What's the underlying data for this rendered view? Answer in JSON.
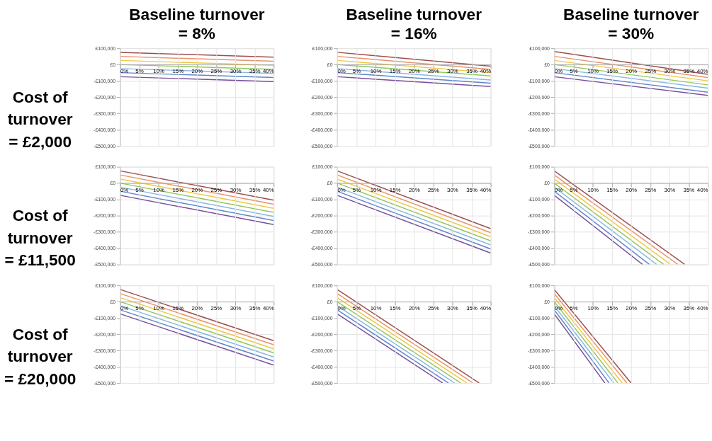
{
  "chart_data": [
    {
      "type": "line",
      "title": "Baseline turnover\n= 8%",
      "ylabel": "Cost of\nturnover\n= £2,000",
      "xlim": [
        0,
        40
      ],
      "ylim": [
        -500000,
        100000
      ],
      "grid": true,
      "xticks": [
        {
          "value": 0,
          "label": "0%"
        },
        {
          "value": 5,
          "label": "5%"
        },
        {
          "value": 10,
          "label": "10%"
        },
        {
          "value": 15,
          "label": "15%"
        },
        {
          "value": 20,
          "label": "20%"
        },
        {
          "value": 25,
          "label": "25%"
        },
        {
          "value": 30,
          "label": "30%"
        },
        {
          "value": 35,
          "label": "35%"
        },
        {
          "value": 40,
          "label": "40%"
        }
      ],
      "yticks": [
        {
          "value": 100000,
          "label": "£100,000"
        },
        {
          "value": 0,
          "label": "£0"
        },
        {
          "value": -100000,
          "label": "-£100,000"
        },
        {
          "value": -200000,
          "label": "-£200,000"
        },
        {
          "value": -300000,
          "label": "-£300,000"
        },
        {
          "value": -400000,
          "label": "-£400,000"
        },
        {
          "value": -500000,
          "label": "-£500,000"
        }
      ],
      "series": [
        {
          "color": "#9b4f4f",
          "x": [
            0,
            40
          ],
          "values": [
            75000,
            45000
          ]
        },
        {
          "color": "#e6946a",
          "x": [
            0,
            40
          ],
          "values": [
            50000,
            20000
          ]
        },
        {
          "color": "#f5c542",
          "x": [
            0,
            40
          ],
          "values": [
            25000,
            -5000
          ]
        },
        {
          "color": "#8fc95a",
          "x": [
            0,
            40
          ],
          "values": [
            0,
            -30000
          ]
        },
        {
          "color": "#8fb4e3",
          "x": [
            0,
            40
          ],
          "values": [
            -25000,
            -55000
          ]
        },
        {
          "color": "#5b87c9",
          "x": [
            0,
            40
          ],
          "values": [
            -50000,
            -80000
          ]
        },
        {
          "color": "#7a4e9b",
          "x": [
            0,
            40
          ],
          "values": [
            -75000,
            -105000
          ]
        }
      ]
    },
    {
      "type": "line",
      "title": "Baseline turnover\n= 16%",
      "xlim": [
        0,
        40
      ],
      "ylim": [
        -500000,
        100000
      ],
      "grid": true,
      "xticks": [
        {
          "value": 0,
          "label": "0%"
        },
        {
          "value": 5,
          "label": "5%"
        },
        {
          "value": 10,
          "label": "10%"
        },
        {
          "value": 15,
          "label": "15%"
        },
        {
          "value": 20,
          "label": "20%"
        },
        {
          "value": 25,
          "label": "25%"
        },
        {
          "value": 30,
          "label": "30%"
        },
        {
          "value": 35,
          "label": "35%"
        },
        {
          "value": 40,
          "label": "40%"
        }
      ],
      "yticks": [
        {
          "value": 100000,
          "label": "£100,000"
        },
        {
          "value": 0,
          "label": "£0"
        },
        {
          "value": -100000,
          "label": "-£100,000"
        },
        {
          "value": -200000,
          "label": "-£200,000"
        },
        {
          "value": -300000,
          "label": "-£300,000"
        },
        {
          "value": -400000,
          "label": "-£400,000"
        },
        {
          "value": -500000,
          "label": "-£500,000"
        }
      ],
      "series": [
        {
          "color": "#9b4f4f",
          "x": [
            0,
            40
          ],
          "values": [
            75000,
            -10000
          ]
        },
        {
          "color": "#e6946a",
          "x": [
            0,
            40
          ],
          "values": [
            50000,
            -30000
          ]
        },
        {
          "color": "#f5c542",
          "x": [
            0,
            40
          ],
          "values": [
            25000,
            -50000
          ]
        },
        {
          "color": "#8fc95a",
          "x": [
            0,
            40
          ],
          "values": [
            0,
            -70000
          ]
        },
        {
          "color": "#8fb4e3",
          "x": [
            0,
            40
          ],
          "values": [
            -25000,
            -95000
          ]
        },
        {
          "color": "#5b87c9",
          "x": [
            0,
            40
          ],
          "values": [
            -50000,
            -115000
          ]
        },
        {
          "color": "#7a4e9b",
          "x": [
            0,
            40
          ],
          "values": [
            -75000,
            -135000
          ]
        }
      ]
    },
    {
      "type": "line",
      "title": "Baseline turnover\n= 30%",
      "xlim": [
        0,
        40
      ],
      "ylim": [
        -500000,
        100000
      ],
      "grid": true,
      "xticks": [
        {
          "value": 0,
          "label": "0%"
        },
        {
          "value": 5,
          "label": "5%"
        },
        {
          "value": 10,
          "label": "10%"
        },
        {
          "value": 15,
          "label": "15%"
        },
        {
          "value": 20,
          "label": "20%"
        },
        {
          "value": 25,
          "label": "25%"
        },
        {
          "value": 30,
          "label": "30%"
        },
        {
          "value": 35,
          "label": "35%"
        },
        {
          "value": 40,
          "label": "40%"
        }
      ],
      "yticks": [
        {
          "value": 100000,
          "label": "£100,000"
        },
        {
          "value": 0,
          "label": "£0"
        },
        {
          "value": -100000,
          "label": "-£100,000"
        },
        {
          "value": -200000,
          "label": "-£200,000"
        },
        {
          "value": -300000,
          "label": "-£300,000"
        },
        {
          "value": -400000,
          "label": "-£400,000"
        },
        {
          "value": -500000,
          "label": "-£500,000"
        }
      ],
      "series": [
        {
          "color": "#9b4f4f",
          "x": [
            0,
            40
          ],
          "values": [
            80000,
            -60000
          ]
        },
        {
          "color": "#e6946a",
          "x": [
            0,
            40
          ],
          "values": [
            50000,
            -80000
          ]
        },
        {
          "color": "#f5c542",
          "x": [
            0,
            40
          ],
          "values": [
            25000,
            -100000
          ]
        },
        {
          "color": "#8fc95a",
          "x": [
            0,
            40
          ],
          "values": [
            0,
            -125000
          ]
        },
        {
          "color": "#8fb4e3",
          "x": [
            0,
            40
          ],
          "values": [
            -25000,
            -145000
          ]
        },
        {
          "color": "#5b87c9",
          "x": [
            0,
            40
          ],
          "values": [
            -50000,
            -170000
          ]
        },
        {
          "color": "#7a4e9b",
          "x": [
            0,
            40
          ],
          "values": [
            -75000,
            -190000
          ]
        }
      ]
    },
    {
      "type": "line",
      "ylabel": "Cost of\nturnover\n= £11,500",
      "xlim": [
        0,
        40
      ],
      "ylim": [
        -500000,
        100000
      ],
      "grid": true,
      "xticks": [
        {
          "value": 0,
          "label": "0%"
        },
        {
          "value": 5,
          "label": "5%"
        },
        {
          "value": 10,
          "label": "10%"
        },
        {
          "value": 15,
          "label": "15%"
        },
        {
          "value": 20,
          "label": "20%"
        },
        {
          "value": 25,
          "label": "25%"
        },
        {
          "value": 30,
          "label": "30%"
        },
        {
          "value": 35,
          "label": "35%"
        },
        {
          "value": 40,
          "label": "40%"
        }
      ],
      "yticks": [
        {
          "value": 100000,
          "label": "£100,000"
        },
        {
          "value": 0,
          "label": "£0"
        },
        {
          "value": -100000,
          "label": "-£100,000"
        },
        {
          "value": -200000,
          "label": "-£200,000"
        },
        {
          "value": -300000,
          "label": "-£300,000"
        },
        {
          "value": -400000,
          "label": "-£400,000"
        },
        {
          "value": -500000,
          "label": "-£500,000"
        }
      ],
      "series": [
        {
          "color": "#9b4f4f",
          "x": [
            0,
            40
          ],
          "values": [
            75000,
            -105000
          ]
        },
        {
          "color": "#e6946a",
          "x": [
            0,
            40
          ],
          "values": [
            50000,
            -130000
          ]
        },
        {
          "color": "#f5c542",
          "x": [
            0,
            40
          ],
          "values": [
            25000,
            -155000
          ]
        },
        {
          "color": "#8fc95a",
          "x": [
            0,
            40
          ],
          "values": [
            0,
            -180000
          ]
        },
        {
          "color": "#8fb4e3",
          "x": [
            0,
            40
          ],
          "values": [
            -25000,
            -205000
          ]
        },
        {
          "color": "#5b87c9",
          "x": [
            0,
            40
          ],
          "values": [
            -50000,
            -230000
          ]
        },
        {
          "color": "#7a4e9b",
          "x": [
            0,
            40
          ],
          "values": [
            -75000,
            -255000
          ]
        }
      ]
    },
    {
      "type": "line",
      "xlim": [
        0,
        40
      ],
      "ylim": [
        -500000,
        100000
      ],
      "grid": true,
      "xticks": [
        {
          "value": 0,
          "label": "0%"
        },
        {
          "value": 5,
          "label": "5%"
        },
        {
          "value": 10,
          "label": "10%"
        },
        {
          "value": 15,
          "label": "15%"
        },
        {
          "value": 20,
          "label": "20%"
        },
        {
          "value": 25,
          "label": "25%"
        },
        {
          "value": 30,
          "label": "30%"
        },
        {
          "value": 35,
          "label": "35%"
        },
        {
          "value": 40,
          "label": "40%"
        }
      ],
      "yticks": [
        {
          "value": 100000,
          "label": "£100,000"
        },
        {
          "value": 0,
          "label": "£0"
        },
        {
          "value": -100000,
          "label": "-£100,000"
        },
        {
          "value": -200000,
          "label": "-£200,000"
        },
        {
          "value": -300000,
          "label": "-£300,000"
        },
        {
          "value": -400000,
          "label": "-£400,000"
        },
        {
          "value": -500000,
          "label": "-£500,000"
        }
      ],
      "series": [
        {
          "color": "#9b4f4f",
          "x": [
            0,
            40
          ],
          "values": [
            75000,
            -280000
          ]
        },
        {
          "color": "#e6946a",
          "x": [
            0,
            40
          ],
          "values": [
            50000,
            -305000
          ]
        },
        {
          "color": "#f5c542",
          "x": [
            0,
            40
          ],
          "values": [
            25000,
            -330000
          ]
        },
        {
          "color": "#8fc95a",
          "x": [
            0,
            40
          ],
          "values": [
            0,
            -355000
          ]
        },
        {
          "color": "#8fb4e3",
          "x": [
            0,
            40
          ],
          "values": [
            -25000,
            -380000
          ]
        },
        {
          "color": "#5b87c9",
          "x": [
            0,
            40
          ],
          "values": [
            -50000,
            -405000
          ]
        },
        {
          "color": "#7a4e9b",
          "x": [
            0,
            40
          ],
          "values": [
            -75000,
            -430000
          ]
        }
      ]
    },
    {
      "type": "line",
      "xlim": [
        0,
        40
      ],
      "ylim": [
        -500000,
        100000
      ],
      "grid": true,
      "xticks": [
        {
          "value": 0,
          "label": "0%"
        },
        {
          "value": 5,
          "label": "5%"
        },
        {
          "value": 10,
          "label": "10%"
        },
        {
          "value": 15,
          "label": "15%"
        },
        {
          "value": 20,
          "label": "20%"
        },
        {
          "value": 25,
          "label": "25%"
        },
        {
          "value": 30,
          "label": "30%"
        },
        {
          "value": 35,
          "label": "35%"
        },
        {
          "value": 40,
          "label": "40%"
        }
      ],
      "yticks": [
        {
          "value": 100000,
          "label": "£100,000"
        },
        {
          "value": 0,
          "label": "£0"
        },
        {
          "value": -100000,
          "label": "-£100,000"
        },
        {
          "value": -200000,
          "label": "-£200,000"
        },
        {
          "value": -300000,
          "label": "-£300,000"
        },
        {
          "value": -400000,
          "label": "-£400,000"
        },
        {
          "value": -500000,
          "label": "-£500,000"
        }
      ],
      "series": [
        {
          "color": "#9b4f4f",
          "x": [
            0,
            34
          ],
          "values": [
            75000,
            -500000
          ]
        },
        {
          "color": "#e6946a",
          "x": [
            0,
            32.2
          ],
          "values": [
            50000,
            -500000
          ]
        },
        {
          "color": "#f5c542",
          "x": [
            0,
            30.3
          ],
          "values": [
            25000,
            -500000
          ]
        },
        {
          "color": "#8fc95a",
          "x": [
            0,
            28.5
          ],
          "values": [
            0,
            -500000
          ]
        },
        {
          "color": "#8fb4e3",
          "x": [
            0,
            26.7
          ],
          "values": [
            -25000,
            -500000
          ]
        },
        {
          "color": "#5b87c9",
          "x": [
            0,
            24.8
          ],
          "values": [
            -50000,
            -500000
          ]
        },
        {
          "color": "#7a4e9b",
          "x": [
            0,
            23
          ],
          "values": [
            -75000,
            -500000
          ]
        }
      ]
    },
    {
      "type": "line",
      "ylabel": "Cost of\nturnover\n= £20,000",
      "xlim": [
        0,
        40
      ],
      "ylim": [
        -500000,
        100000
      ],
      "grid": true,
      "xticks": [
        {
          "value": 0,
          "label": "0%"
        },
        {
          "value": 5,
          "label": "5%"
        },
        {
          "value": 10,
          "label": "10%"
        },
        {
          "value": 15,
          "label": "15%"
        },
        {
          "value": 20,
          "label": "20%"
        },
        {
          "value": 25,
          "label": "25%"
        },
        {
          "value": 30,
          "label": "30%"
        },
        {
          "value": 35,
          "label": "35%"
        },
        {
          "value": 40,
          "label": "40%"
        }
      ],
      "yticks": [
        {
          "value": 100000,
          "label": "£100,000"
        },
        {
          "value": 0,
          "label": "£0"
        },
        {
          "value": -100000,
          "label": "-£100,000"
        },
        {
          "value": -200000,
          "label": "-£200,000"
        },
        {
          "value": -300000,
          "label": "-£300,000"
        },
        {
          "value": -400000,
          "label": "-£400,000"
        },
        {
          "value": -500000,
          "label": "-£500,000"
        }
      ],
      "series": [
        {
          "color": "#9b4f4f",
          "x": [
            0,
            40
          ],
          "values": [
            75000,
            -240000
          ]
        },
        {
          "color": "#e6946a",
          "x": [
            0,
            40
          ],
          "values": [
            50000,
            -265000
          ]
        },
        {
          "color": "#f5c542",
          "x": [
            0,
            40
          ],
          "values": [
            25000,
            -290000
          ]
        },
        {
          "color": "#8fc95a",
          "x": [
            0,
            40
          ],
          "values": [
            0,
            -315000
          ]
        },
        {
          "color": "#8fb4e3",
          "x": [
            0,
            40
          ],
          "values": [
            -25000,
            -340000
          ]
        },
        {
          "color": "#5b87c9",
          "x": [
            0,
            40
          ],
          "values": [
            -50000,
            -365000
          ]
        },
        {
          "color": "#7a4e9b",
          "x": [
            0,
            40
          ],
          "values": [
            -75000,
            -390000
          ]
        }
      ]
    },
    {
      "type": "line",
      "xlim": [
        0,
        40
      ],
      "ylim": [
        -500000,
        100000
      ],
      "grid": true,
      "xticks": [
        {
          "value": 0,
          "label": "0%"
        },
        {
          "value": 5,
          "label": "5%"
        },
        {
          "value": 10,
          "label": "10%"
        },
        {
          "value": 15,
          "label": "15%"
        },
        {
          "value": 20,
          "label": "20%"
        },
        {
          "value": 25,
          "label": "25%"
        },
        {
          "value": 30,
          "label": "30%"
        },
        {
          "value": 35,
          "label": "35%"
        },
        {
          "value": 40,
          "label": "40%"
        }
      ],
      "yticks": [
        {
          "value": 100000,
          "label": "£100,000"
        },
        {
          "value": 0,
          "label": "£0"
        },
        {
          "value": -100000,
          "label": "-£100,000"
        },
        {
          "value": -200000,
          "label": "-£200,000"
        },
        {
          "value": -300000,
          "label": "-£300,000"
        },
        {
          "value": -400000,
          "label": "-£400,000"
        },
        {
          "value": -500000,
          "label": "-£500,000"
        }
      ],
      "series": [
        {
          "color": "#9b4f4f",
          "x": [
            0,
            37
          ],
          "values": [
            75000,
            -500000
          ]
        },
        {
          "color": "#e6946a",
          "x": [
            0,
            35.4
          ],
          "values": [
            50000,
            -500000
          ]
        },
        {
          "color": "#f5c542",
          "x": [
            0,
            33.8
          ],
          "values": [
            25000,
            -500000
          ]
        },
        {
          "color": "#8fc95a",
          "x": [
            0,
            32.2
          ],
          "values": [
            0,
            -500000
          ]
        },
        {
          "color": "#8fb4e3",
          "x": [
            0,
            30.6
          ],
          "values": [
            -25000,
            -500000
          ]
        },
        {
          "color": "#5b87c9",
          "x": [
            0,
            29
          ],
          "values": [
            -50000,
            -500000
          ]
        },
        {
          "color": "#7a4e9b",
          "x": [
            0,
            27.5
          ],
          "values": [
            -75000,
            -500000
          ]
        }
      ]
    },
    {
      "type": "line",
      "xlim": [
        0,
        40
      ],
      "ylim": [
        -500000,
        100000
      ],
      "grid": true,
      "xticks": [
        {
          "value": 0,
          "label": "0%"
        },
        {
          "value": 5,
          "label": "5%"
        },
        {
          "value": 10,
          "label": "10%"
        },
        {
          "value": 15,
          "label": "15%"
        },
        {
          "value": 20,
          "label": "20%"
        },
        {
          "value": 25,
          "label": "25%"
        },
        {
          "value": 30,
          "label": "30%"
        },
        {
          "value": 35,
          "label": "35%"
        },
        {
          "value": 40,
          "label": "40%"
        }
      ],
      "yticks": [
        {
          "value": 100000,
          "label": "£100,000"
        },
        {
          "value": 0,
          "label": "£0"
        },
        {
          "value": -100000,
          "label": "-£100,000"
        },
        {
          "value": -200000,
          "label": "-£200,000"
        },
        {
          "value": -300000,
          "label": "-£300,000"
        },
        {
          "value": -400000,
          "label": "-£400,000"
        },
        {
          "value": -500000,
          "label": "-£500,000"
        }
      ],
      "series": [
        {
          "color": "#9b4f4f",
          "x": [
            0,
            20
          ],
          "values": [
            75000,
            -500000
          ]
        },
        {
          "color": "#e6946a",
          "x": [
            0,
            18.9
          ],
          "values": [
            50000,
            -500000
          ]
        },
        {
          "color": "#f5c542",
          "x": [
            0,
            17.7
          ],
          "values": [
            25000,
            -500000
          ]
        },
        {
          "color": "#8fc95a",
          "x": [
            0,
            16.6
          ],
          "values": [
            0,
            -500000
          ]
        },
        {
          "color": "#8fb4e3",
          "x": [
            0,
            15.5
          ],
          "values": [
            -25000,
            -500000
          ]
        },
        {
          "color": "#5b87c9",
          "x": [
            0,
            14.3
          ],
          "values": [
            -50000,
            -500000
          ]
        },
        {
          "color": "#7a4e9b",
          "x": [
            0,
            13.2
          ],
          "values": [
            -75000,
            -500000
          ]
        }
      ]
    }
  ]
}
